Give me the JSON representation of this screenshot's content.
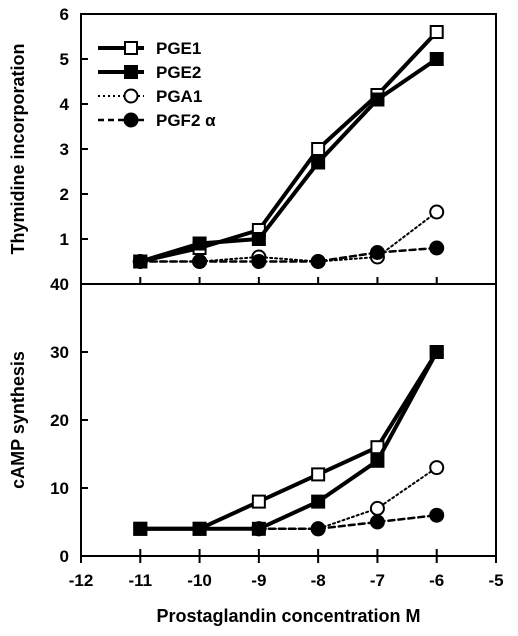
{
  "chart_data": [
    {
      "type": "line",
      "panel": "top",
      "ylabel": "Thymidine incorporation",
      "ylim": [
        0,
        6
      ],
      "yticks": [
        1,
        2,
        3,
        4,
        5,
        6
      ],
      "xlim": [
        -12,
        -5
      ],
      "legend_position": "top-left",
      "series": [
        {
          "name": "PGE1",
          "marker": "open-square",
          "style": "solid-thick",
          "x": [
            -11,
            -10,
            -9,
            -8,
            -7,
            -6
          ],
          "y": [
            0.5,
            0.8,
            1.2,
            3.0,
            4.2,
            5.6
          ]
        },
        {
          "name": "PGE2",
          "marker": "filled-square",
          "style": "solid-thick",
          "x": [
            -11,
            -10,
            -9,
            -8,
            -7,
            -6
          ],
          "y": [
            0.5,
            0.9,
            1.0,
            2.7,
            4.1,
            5.0
          ]
        },
        {
          "name": "PGA1",
          "marker": "open-circle",
          "style": "dotted",
          "x": [
            -11,
            -10,
            -9,
            -8,
            -7,
            -6
          ],
          "y": [
            0.5,
            0.5,
            0.6,
            0.5,
            0.6,
            1.6
          ]
        },
        {
          "name": "PGF2 α",
          "marker": "filled-circle",
          "style": "dashed",
          "x": [
            -11,
            -10,
            -9,
            -8,
            -7,
            -6
          ],
          "y": [
            0.5,
            0.5,
            0.5,
            0.5,
            0.7,
            0.8
          ]
        }
      ]
    },
    {
      "type": "line",
      "panel": "bottom",
      "xlabel": "Prostaglandin concentration  M",
      "ylabel": "cAMP synthesis",
      "ylim": [
        0,
        40
      ],
      "yticks": [
        0,
        10,
        20,
        30,
        40
      ],
      "xlim": [
        -12,
        -5
      ],
      "xticks": [
        -12,
        -11,
        -10,
        -9,
        -8,
        -7,
        -6,
        -5
      ],
      "series": [
        {
          "name": "PGE1",
          "marker": "open-square",
          "style": "solid-thick",
          "x": [
            -11,
            -10,
            -9,
            -8,
            -7,
            -6
          ],
          "y": [
            4,
            4,
            8,
            12,
            16,
            30
          ]
        },
        {
          "name": "PGE2",
          "marker": "filled-square",
          "style": "solid-thick",
          "x": [
            -11,
            -10,
            -9,
            -8,
            -7,
            -6
          ],
          "y": [
            4,
            4,
            4,
            8,
            14,
            30
          ]
        },
        {
          "name": "PGA1",
          "marker": "open-circle",
          "style": "dotted",
          "x": [
            -9,
            -8,
            -7,
            -6
          ],
          "y": [
            4,
            4,
            7,
            13
          ]
        },
        {
          "name": "PGF2 α",
          "marker": "filled-circle",
          "style": "dashed",
          "x": [
            -9,
            -8,
            -7,
            -6
          ],
          "y": [
            4,
            4,
            5,
            6
          ]
        }
      ]
    }
  ]
}
